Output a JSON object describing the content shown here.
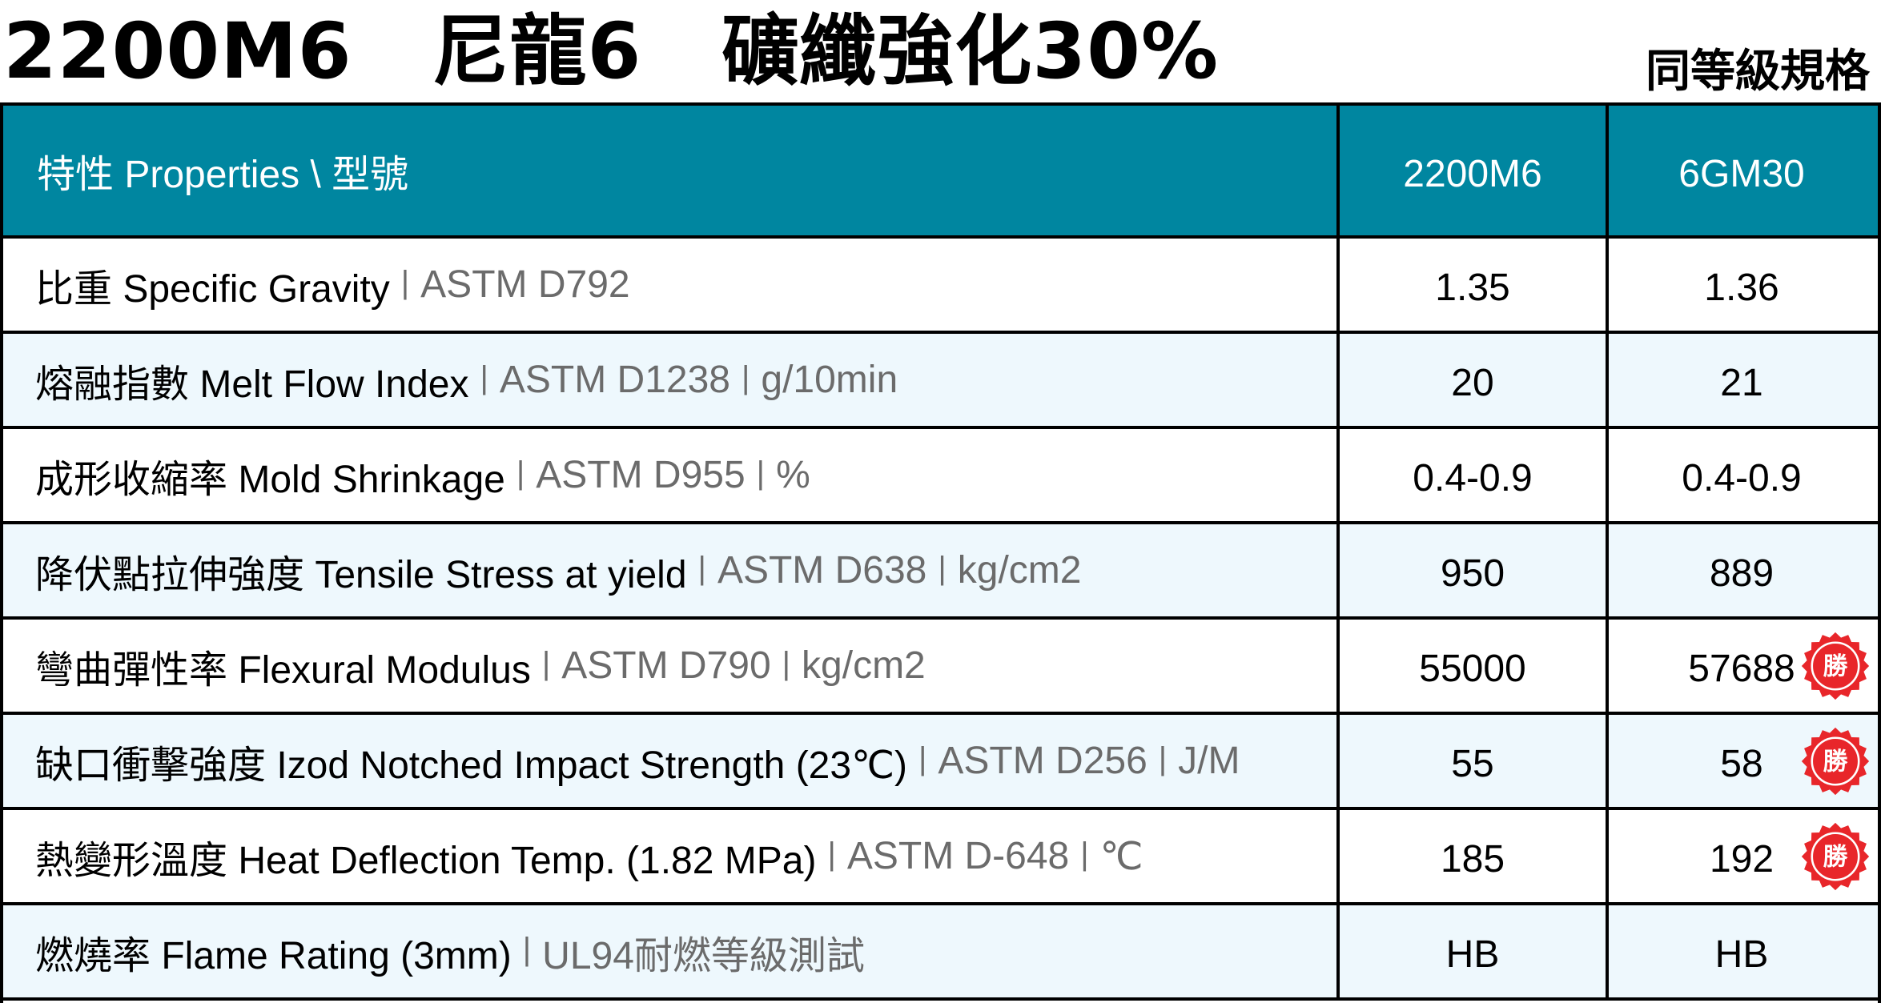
{
  "title": {
    "product": "2200M6",
    "material": "尼龍6",
    "grade": "礦纖強化30%"
  },
  "equivalent_label": "同等級規格",
  "table": {
    "header": {
      "label": "特性 Properties \\ 型號",
      "col_a": "2200M6",
      "col_b": "6GM30"
    },
    "rows": [
      {
        "name": "比重 Specific Gravity",
        "method": "ASTM D792",
        "unit": "",
        "a": "1.35",
        "b": "1.36",
        "badge": ""
      },
      {
        "name": "熔融指數 Melt Flow Index",
        "method": "ASTM D1238",
        "unit": "g/10min",
        "a": "20",
        "b": "21",
        "badge": ""
      },
      {
        "name": "成形收縮率 Mold Shrinkage",
        "method": "ASTM D955",
        "unit": "%",
        "a": "0.4-0.9",
        "b": "0.4-0.9",
        "badge": ""
      },
      {
        "name": "降伏點拉伸強度 Tensile Stress at yield",
        "method": "ASTM D638",
        "unit": "kg/cm2",
        "a": "950",
        "b": "889",
        "badge": ""
      },
      {
        "name": "彎曲彈性率 Flexural Modulus",
        "method": "ASTM D790",
        "unit": "kg/cm2",
        "a": "55000",
        "b": "57688",
        "badge": "勝"
      },
      {
        "name": "缺口衝擊強度 Izod Notched Impact Strength (23℃)",
        "method": "ASTM D256",
        "unit": "J/M",
        "a": "55",
        "b": "58",
        "badge": "勝"
      },
      {
        "name": "熱變形溫度 Heat Deflection Temp. (1.82 MPa)",
        "method": "ASTM D-648",
        "unit": "℃",
        "a": "185",
        "b": "192",
        "badge": "勝"
      },
      {
        "name": "燃燒率 Flame Rating (3mm)",
        "method": "UL94耐燃等級測試",
        "unit": "",
        "a": "HB",
        "b": "HB",
        "badge": ""
      }
    ]
  },
  "colors": {
    "header_bg": "#0086a0",
    "alt_row_bg": "#eef8fd",
    "badge_red": "#e8262a",
    "meta_gray": "#6b6b6b"
  }
}
